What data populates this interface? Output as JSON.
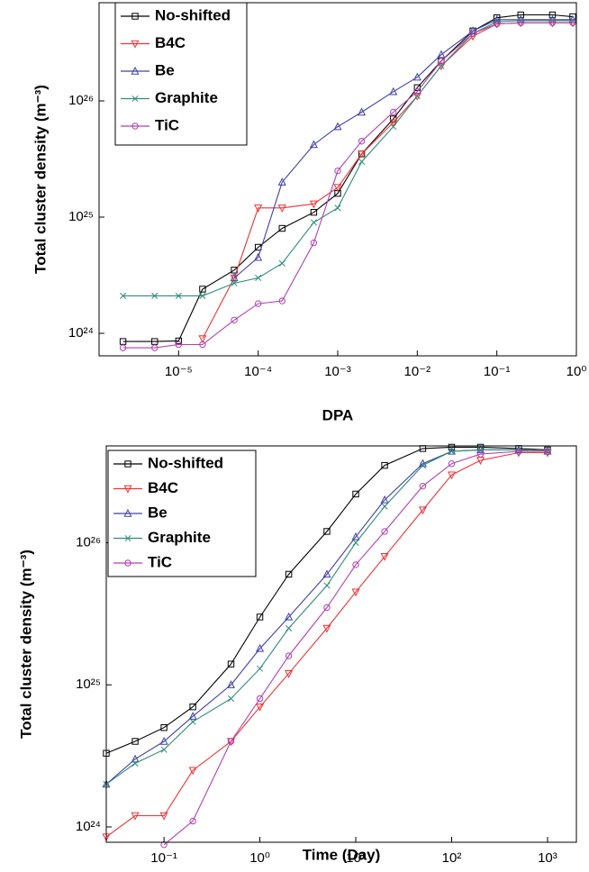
{
  "chart_data": [
    {
      "type": "line",
      "log_x": true,
      "log_y": true,
      "legend": "upper left",
      "xlabel": "DPA",
      "ylabel": "Total cluster density (m⁻³)",
      "xlim": [
        1e-06,
        1
      ],
      "ylim": [
        6.4e+23,
        7e+26
      ],
      "xticks": [
        {
          "value": 1e-05,
          "label": "10⁻⁵"
        },
        {
          "value": 0.0001,
          "label": "10⁻⁴"
        },
        {
          "value": 0.001,
          "label": "10⁻³"
        },
        {
          "value": 0.01,
          "label": "10⁻²"
        },
        {
          "value": 0.1,
          "label": "10⁻¹"
        },
        {
          "value": 1,
          "label": "10⁰"
        }
      ],
      "yticks": [
        {
          "value": 1e+24,
          "label": "10²⁴"
        },
        {
          "value": 1e+25,
          "label": "10²⁵"
        },
        {
          "value": 1e+26,
          "label": "10²⁶"
        }
      ],
      "x": [
        2e-06,
        5e-06,
        1e-05,
        2e-05,
        5e-05,
        0.0001,
        0.0002,
        0.0005,
        0.001,
        0.002,
        0.005,
        0.01,
        0.02,
        0.05,
        0.1,
        0.2,
        0.5,
        0.9
      ],
      "series": [
        {
          "name": "No-shifted",
          "color": "#000000",
          "marker": "square",
          "values": [
            8.5e+23,
            8.5e+23,
            8.6e+23,
            2.4e+24,
            3.5e+24,
            5.5e+24,
            8e+24,
            1.1e+25,
            1.6e+25,
            3.5e+25,
            7e+25,
            1.3e+26,
            2.2e+26,
            4e+26,
            5.2e+26,
            5.5e+26,
            5.5e+26,
            5.3e+26
          ]
        },
        {
          "name": "B4C",
          "color": "#ee3333",
          "marker": "triangle-down",
          "values": [
            null,
            null,
            null,
            9e+23,
            3e+24,
            1.2e+25,
            1.2e+25,
            1.3e+25,
            1.8e+25,
            3.5e+25,
            6.5e+25,
            1.1e+26,
            2e+26,
            3.6e+26,
            4.6e+26,
            4.7e+26,
            4.7e+26,
            4.7e+26
          ]
        },
        {
          "name": "Be",
          "color": "#4040a8",
          "marker": "triangle-up",
          "values": [
            null,
            null,
            null,
            null,
            3e+24,
            4.5e+24,
            2e+25,
            4.2e+25,
            6e+25,
            8e+25,
            1.2e+26,
            1.6e+26,
            2.5e+26,
            4e+26,
            5e+26,
            5e+26,
            5e+26,
            5e+26
          ]
        },
        {
          "name": "Graphite",
          "color": "#2e8b7a",
          "marker": "cross",
          "values": [
            2.1e+24,
            2.1e+24,
            2.1e+24,
            2.1e+24,
            2.7e+24,
            3e+24,
            4e+24,
            9e+24,
            1.2e+25,
            3e+25,
            6e+25,
            1.1e+26,
            2e+26,
            3.8e+26,
            4.8e+26,
            4.9e+26,
            4.9e+26,
            4.9e+26
          ]
        },
        {
          "name": "TiC",
          "color": "#b040b0",
          "marker": "circle",
          "values": [
            7.5e+23,
            7.5e+23,
            8e+23,
            8e+23,
            1.3e+24,
            1.8e+24,
            1.9e+24,
            6e+24,
            2.5e+25,
            4.5e+25,
            8e+25,
            1.2e+26,
            2.2e+26,
            3.8e+26,
            4.6e+26,
            4.7e+26,
            4.7e+26,
            4.7e+26
          ]
        }
      ]
    },
    {
      "type": "line",
      "log_x": true,
      "log_y": true,
      "legend": "upper left",
      "xlabel": "Time (Day)",
      "ylabel": "Total cluster density (m⁻³)",
      "xlim": [
        0.025,
        2000
      ],
      "ylim": [
        7.8e+23,
        4.8e+26
      ],
      "xticks": [
        {
          "value": 0.1,
          "label": "10⁻¹"
        },
        {
          "value": 1,
          "label": "10⁰"
        },
        {
          "value": 10,
          "label": "10¹"
        },
        {
          "value": 100,
          "label": "10²"
        },
        {
          "value": 1000,
          "label": "10³"
        }
      ],
      "yticks": [
        {
          "value": 1e+24,
          "label": "10²⁴"
        },
        {
          "value": 1e+25,
          "label": "10²⁵"
        },
        {
          "value": 1e+26,
          "label": "10²⁶"
        }
      ],
      "x": [
        0.025,
        0.05,
        0.1,
        0.2,
        0.5,
        1,
        2,
        5,
        10,
        20,
        50,
        100,
        200,
        500,
        1000
      ],
      "series": [
        {
          "name": "No-shifted",
          "color": "#000000",
          "marker": "square",
          "values": [
            3.3e+24,
            4e+24,
            5e+24,
            7e+24,
            1.4e+25,
            3e+25,
            6e+25,
            1.2e+26,
            2.2e+26,
            3.5e+26,
            4.6e+26,
            4.7e+26,
            4.7e+26,
            4.6e+26,
            4.5e+26
          ]
        },
        {
          "name": "B4C",
          "color": "#ee3333",
          "marker": "triangle-down",
          "values": [
            8.5e+23,
            1.2e+24,
            1.2e+24,
            2.5e+24,
            4e+24,
            7e+24,
            1.2e+25,
            2.5e+25,
            4.5e+25,
            8e+25,
            1.7e+26,
            3e+26,
            3.8e+26,
            4.3e+26,
            4.3e+26
          ]
        },
        {
          "name": "Be",
          "color": "#4040a8",
          "marker": "triangle-up",
          "values": [
            2e+24,
            3e+24,
            4e+24,
            6e+24,
            1e+25,
            1.8e+25,
            3e+25,
            6e+25,
            1.1e+26,
            2e+26,
            3.6e+26,
            4.4e+26,
            4.5e+26,
            4.5e+26,
            4.4e+26
          ]
        },
        {
          "name": "Graphite",
          "color": "#2e8b7a",
          "marker": "cross",
          "values": [
            2e+24,
            2.8e+24,
            3.5e+24,
            5.5e+24,
            8e+24,
            1.3e+25,
            2.5e+25,
            5e+25,
            1e+26,
            1.8e+26,
            3.5e+26,
            4.4e+26,
            4.5e+26,
            4.5e+26,
            4.4e+26
          ]
        },
        {
          "name": "TiC",
          "color": "#b040b0",
          "marker": "circle",
          "values": [
            null,
            null,
            7.5e+23,
            1.1e+24,
            4e+24,
            8e+24,
            1.6e+25,
            3.5e+25,
            7e+25,
            1.2e+26,
            2.5e+26,
            3.6e+26,
            4.2e+26,
            4.4e+26,
            4.4e+26
          ]
        }
      ]
    }
  ]
}
